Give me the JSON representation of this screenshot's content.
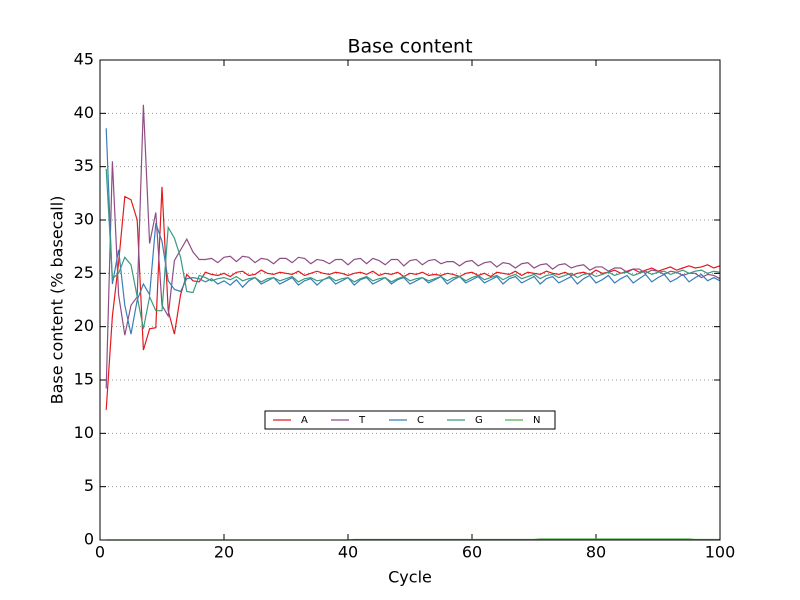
{
  "chart_data": {
    "type": "line",
    "title": "Base content",
    "xlabel": "Cycle",
    "ylabel": "Base content (% basecall)",
    "x": [
      1,
      2,
      3,
      4,
      5,
      6,
      7,
      8,
      9,
      10,
      11,
      12,
      13,
      14,
      15,
      16,
      17,
      18,
      19,
      20,
      21,
      22,
      23,
      24,
      25,
      26,
      27,
      28,
      29,
      30,
      31,
      32,
      33,
      34,
      35,
      36,
      37,
      38,
      39,
      40,
      41,
      42,
      43,
      44,
      45,
      46,
      47,
      48,
      49,
      50,
      51,
      52,
      53,
      54,
      55,
      56,
      57,
      58,
      59,
      60,
      61,
      62,
      63,
      64,
      65,
      66,
      67,
      68,
      69,
      70,
      71,
      72,
      73,
      74,
      75,
      76,
      77,
      78,
      79,
      80,
      81,
      82,
      83,
      84,
      85,
      86,
      87,
      88,
      89,
      90,
      91,
      92,
      93,
      94,
      95,
      96,
      97,
      98,
      99,
      100
    ],
    "series": [
      {
        "name": "A",
        "color": "#e41a1c",
        "values": [
          12.2,
          21.0,
          26.0,
          32.2,
          31.9,
          30.0,
          17.8,
          19.8,
          19.9,
          33.1,
          21.5,
          19.3,
          23.0,
          24.9,
          24.3,
          24.2,
          25.1,
          24.9,
          24.8,
          25.0,
          24.7,
          25.1,
          25.2,
          24.8,
          24.9,
          25.3,
          25.0,
          24.9,
          25.1,
          25.0,
          24.9,
          25.2,
          24.8,
          25.0,
          25.2,
          25.0,
          24.9,
          25.1,
          25.0,
          24.8,
          25.0,
          25.1,
          24.9,
          25.2,
          24.8,
          25.0,
          24.9,
          25.1,
          24.7,
          25.0,
          24.9,
          25.1,
          24.8,
          24.9,
          24.8,
          25.0,
          24.9,
          24.7,
          25.0,
          25.1,
          24.8,
          25.0,
          24.7,
          25.1,
          25.0,
          24.9,
          25.2,
          24.8,
          25.1,
          25.0,
          24.9,
          25.2,
          25.0,
          24.9,
          25.1,
          24.8,
          25.0,
          25.1,
          24.9,
          25.3,
          25.0,
          25.1,
          25.3,
          25.0,
          25.2,
          25.4,
          25.1,
          25.3,
          25.5,
          25.2,
          25.4,
          25.6,
          25.3,
          25.5,
          25.7,
          25.5,
          25.6,
          25.8,
          25.5,
          25.7
        ]
      },
      {
        "name": "T",
        "color": "#8f4d86",
        "values": [
          14.2,
          35.5,
          23.0,
          19.2,
          22.0,
          22.8,
          40.8,
          27.8,
          30.7,
          22.0,
          21.0,
          26.2,
          27.2,
          28.2,
          27.0,
          26.3,
          26.3,
          26.4,
          26.0,
          26.5,
          26.6,
          26.1,
          26.6,
          26.5,
          26.0,
          26.4,
          26.3,
          25.9,
          26.4,
          26.4,
          26.0,
          26.5,
          26.4,
          25.9,
          26.3,
          26.2,
          25.9,
          26.3,
          26.3,
          25.8,
          26.3,
          26.4,
          25.9,
          26.4,
          26.2,
          25.8,
          26.3,
          26.3,
          25.7,
          26.2,
          26.3,
          25.8,
          26.2,
          26.3,
          25.9,
          26.1,
          26.1,
          25.7,
          26.1,
          26.2,
          25.7,
          26.0,
          26.1,
          25.6,
          26.0,
          25.9,
          25.5,
          25.9,
          26.0,
          25.5,
          25.8,
          25.9,
          25.4,
          25.8,
          25.9,
          25.5,
          25.7,
          25.8,
          25.3,
          25.6,
          25.6,
          25.2,
          25.5,
          25.5,
          25.1,
          25.4,
          25.4,
          25.0,
          25.3,
          25.2,
          24.9,
          25.2,
          25.1,
          24.8,
          25.0,
          25.0,
          24.6,
          24.9,
          24.8,
          24.5
        ]
      },
      {
        "name": "C",
        "color": "#377eb8",
        "values": [
          38.6,
          24.0,
          27.2,
          22.0,
          19.3,
          22.5,
          24.0,
          23.0,
          29.7,
          28.0,
          24.3,
          23.5,
          23.3,
          24.5,
          24.6,
          24.5,
          24.2,
          24.5,
          24.0,
          24.3,
          23.9,
          24.4,
          23.7,
          24.3,
          24.6,
          24.0,
          24.3,
          24.6,
          24.0,
          24.3,
          24.6,
          23.9,
          24.3,
          24.5,
          23.9,
          24.4,
          24.6,
          24.0,
          24.3,
          24.6,
          23.9,
          24.4,
          24.6,
          24.0,
          24.3,
          24.6,
          24.0,
          24.4,
          24.6,
          24.0,
          24.3,
          24.6,
          24.1,
          24.4,
          24.7,
          24.0,
          24.4,
          24.7,
          24.1,
          24.4,
          24.7,
          24.1,
          24.4,
          24.7,
          24.0,
          24.5,
          24.7,
          24.1,
          24.4,
          24.7,
          24.0,
          24.5,
          24.7,
          24.1,
          24.4,
          24.7,
          24.0,
          24.5,
          24.8,
          24.1,
          24.4,
          24.8,
          24.1,
          24.5,
          24.8,
          24.1,
          24.5,
          24.9,
          24.2,
          24.6,
          24.9,
          24.2,
          24.5,
          24.9,
          24.2,
          24.6,
          24.9,
          24.3,
          24.6,
          24.3
        ]
      },
      {
        "name": "G",
        "color": "#3a9a80",
        "values": [
          34.8,
          24.5,
          25.0,
          26.5,
          25.8,
          22.8,
          19.8,
          22.8,
          21.5,
          21.5,
          29.3,
          28.3,
          26.5,
          23.3,
          23.2,
          24.8,
          24.6,
          24.3,
          24.5,
          24.6,
          24.4,
          24.7,
          24.3,
          24.5,
          24.6,
          24.2,
          24.5,
          24.6,
          24.3,
          24.5,
          24.7,
          24.2,
          24.5,
          24.6,
          24.3,
          24.4,
          24.7,
          24.3,
          24.5,
          24.6,
          24.2,
          24.5,
          24.7,
          24.3,
          24.5,
          24.6,
          24.2,
          24.5,
          24.7,
          24.3,
          24.5,
          24.6,
          24.3,
          24.5,
          24.7,
          24.3,
          24.6,
          24.7,
          24.3,
          24.6,
          24.8,
          24.4,
          24.6,
          24.8,
          24.4,
          24.7,
          24.9,
          24.5,
          24.7,
          24.9,
          24.5,
          24.8,
          24.9,
          24.6,
          24.8,
          25.0,
          24.6,
          24.9,
          25.0,
          24.7,
          24.9,
          25.1,
          24.8,
          25.0,
          25.1,
          24.8,
          25.0,
          25.2,
          24.9,
          25.1,
          25.2,
          24.9,
          25.1,
          25.3,
          25.0,
          25.2,
          25.3,
          25.0,
          25.2,
          25.1
        ]
      },
      {
        "name": "N",
        "color": "#4daf4a",
        "values": [
          0,
          0,
          0,
          0,
          0,
          0,
          0,
          0,
          0,
          0,
          0,
          0,
          0,
          0,
          0,
          0,
          0,
          0,
          0,
          0,
          0,
          0,
          0,
          0,
          0,
          0,
          0,
          0,
          0,
          0,
          0,
          0,
          0,
          0,
          0,
          0,
          0,
          0,
          0,
          0,
          0.05,
          0.05,
          0.05,
          0.05,
          0.05,
          0.05,
          0.05,
          0.05,
          0.05,
          0.05,
          0.05,
          0.05,
          0.05,
          0.05,
          0.05,
          0.05,
          0.05,
          0.05,
          0.05,
          0.05,
          0.05,
          0.05,
          0.05,
          0.05,
          0.05,
          0.05,
          0.05,
          0.05,
          0.05,
          0.05,
          0.1,
          0.1,
          0.1,
          0.1,
          0.1,
          0.1,
          0.1,
          0.1,
          0.1,
          0.1,
          0.1,
          0.1,
          0.1,
          0.1,
          0.1,
          0.1,
          0.1,
          0.1,
          0.1,
          0.1,
          0.1,
          0.1,
          0.1,
          0.1,
          0.1,
          0.05,
          0.05,
          0.05,
          0.05,
          0.05
        ]
      }
    ],
    "xlim": [
      0,
      100
    ],
    "xticks": [
      0,
      20,
      40,
      60,
      80,
      100
    ],
    "ylim": [
      0,
      45
    ],
    "yticks": [
      0,
      5,
      10,
      15,
      20,
      25,
      30,
      35,
      40,
      45
    ],
    "grid": true,
    "legend": "center"
  }
}
